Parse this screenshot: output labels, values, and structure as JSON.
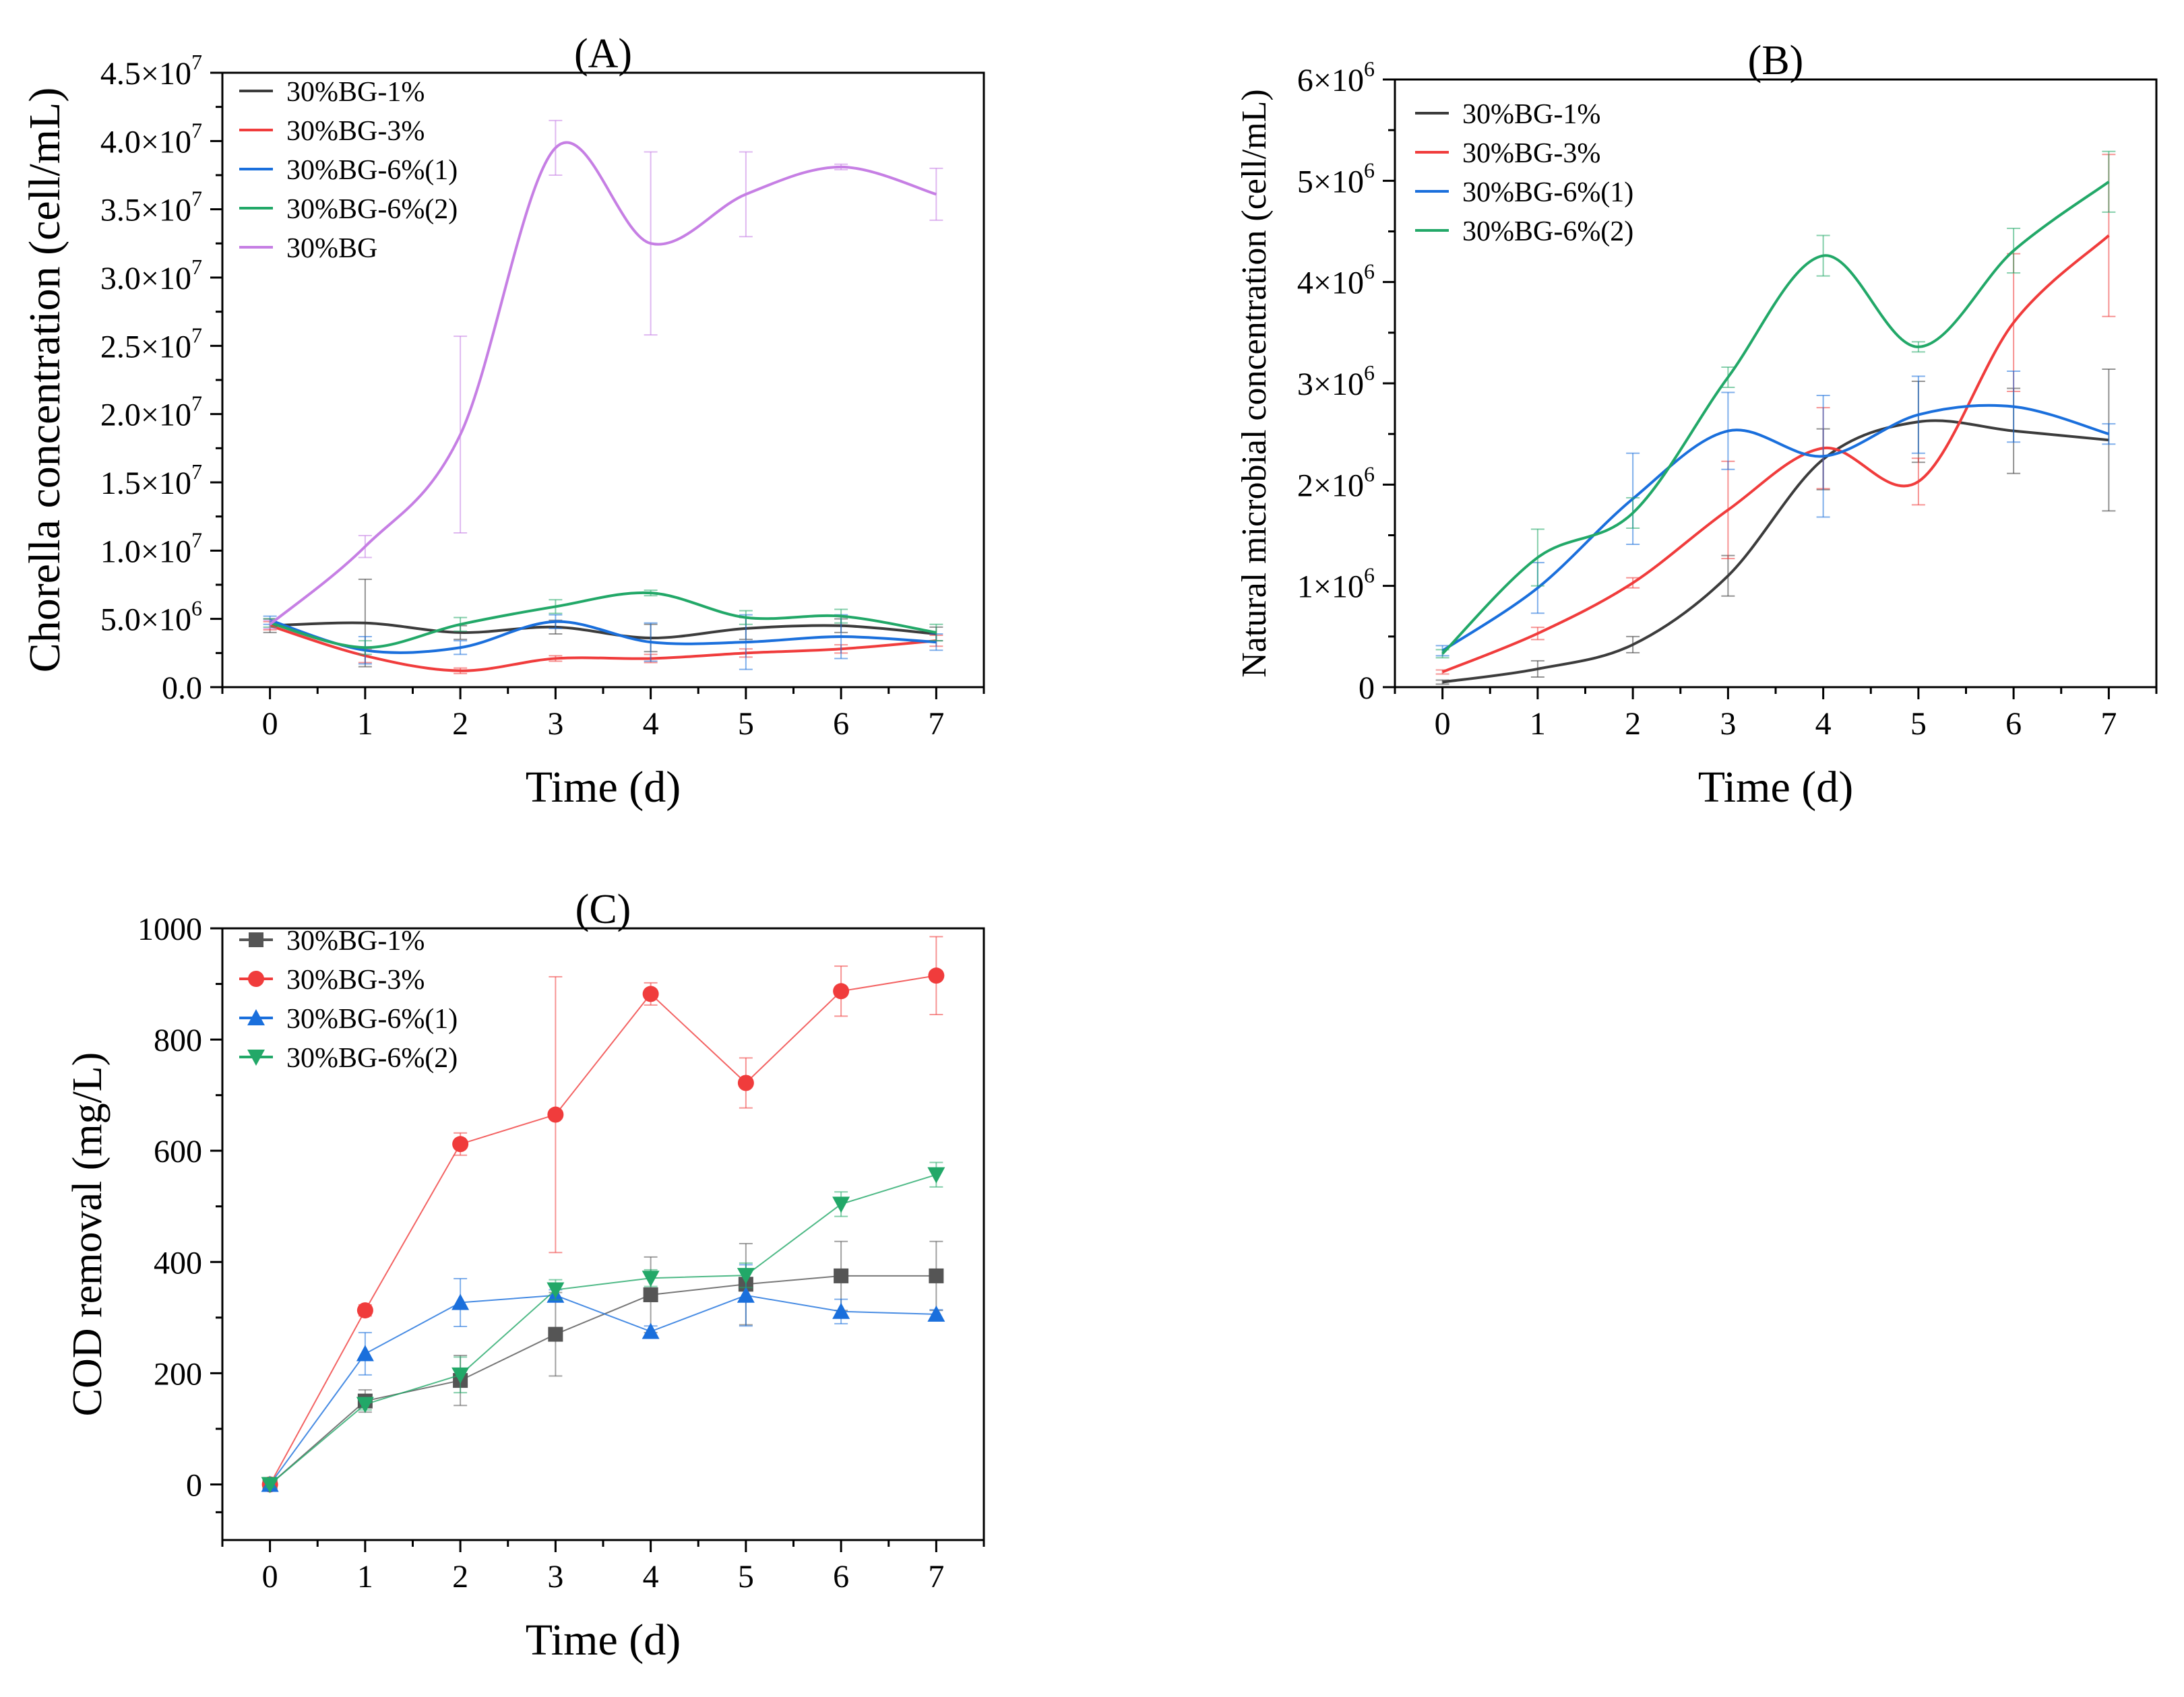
{
  "chart_data": [
    {
      "panel": "A",
      "type": "line",
      "title": "(A)",
      "xlabel": "Time (d)",
      "ylabel": "Chorella concentration (cell/mL)",
      "x": [
        0,
        1,
        2,
        3,
        4,
        5,
        6,
        7
      ],
      "xlim": [
        -0.5,
        7.5
      ],
      "ylim": [
        0,
        45000000
      ],
      "yticks": [
        0,
        5000000,
        10000000,
        15000000,
        20000000,
        25000000,
        30000000,
        35000000,
        40000000,
        45000000
      ],
      "ytick_labels": [
        {
          "base": "0.0",
          "exp": ""
        },
        {
          "base": "5.0×10",
          "exp": "6"
        },
        {
          "base": "1.0×10",
          "exp": "7"
        },
        {
          "base": "1.5×10",
          "exp": "7"
        },
        {
          "base": "2.0×10",
          "exp": "7"
        },
        {
          "base": "2.5×10",
          "exp": "7"
        },
        {
          "base": "3.0×10",
          "exp": "7"
        },
        {
          "base": "3.5×10",
          "exp": "7"
        },
        {
          "base": "4.0×10",
          "exp": "7"
        },
        {
          "base": "4.5×10",
          "exp": "7"
        }
      ],
      "xtick_labels": [
        "0",
        "1",
        "2",
        "3",
        "4",
        "5",
        "6",
        "7"
      ],
      "legend_position": "top-left",
      "smooth": true,
      "series": [
        {
          "name": "30%BG-1%",
          "color": "#3c3c3c",
          "values": [
            4500000,
            4700000,
            4000000,
            4400000,
            3600000,
            4300000,
            4500000,
            3900000
          ],
          "errors": [
            500000,
            3200000,
            500000,
            500000,
            1000000,
            800000,
            500000,
            500000
          ]
        },
        {
          "name": "30%BG-3%",
          "color": "#f03c3c",
          "values": [
            4500000,
            2300000,
            1200000,
            2100000,
            2100000,
            2500000,
            2800000,
            3400000
          ],
          "errors": [
            300000,
            500000,
            200000,
            200000,
            300000,
            300000,
            300000,
            400000
          ]
        },
        {
          "name": "30%BG-6%(1)",
          "color": "#1a6fdc",
          "values": [
            4900000,
            2700000,
            2900000,
            4800000,
            3300000,
            3300000,
            3700000,
            3300000
          ],
          "errors": [
            300000,
            1000000,
            500000,
            500000,
            1400000,
            2000000,
            1600000,
            600000
          ]
        },
        {
          "name": "30%BG-6%(2)",
          "color": "#22a868",
          "values": [
            4700000,
            2900000,
            4600000,
            5900000,
            6900000,
            5100000,
            5200000,
            4000000
          ],
          "errors": [
            300000,
            500000,
            500000,
            500000,
            200000,
            500000,
            500000,
            600000
          ]
        },
        {
          "name": "30%BG",
          "color": "#c67fe4",
          "values": [
            4600000,
            10300000,
            18500000,
            39500000,
            32500000,
            36100000,
            38100000,
            36100000
          ],
          "errors": [
            300000,
            800000,
            7200000,
            2000000,
            6700000,
            3100000,
            200000,
            1900000
          ]
        }
      ]
    },
    {
      "panel": "B",
      "type": "line",
      "title": "(B)",
      "xlabel": "Time (d)",
      "ylabel": "Natural microbial concentration (cell/mL)",
      "x": [
        0,
        1,
        2,
        3,
        4,
        5,
        6,
        7
      ],
      "xlim": [
        -0.5,
        7.5
      ],
      "ylim": [
        0,
        6000000
      ],
      "yticks": [
        0,
        1000000,
        2000000,
        3000000,
        4000000,
        5000000,
        6000000
      ],
      "ytick_labels": [
        {
          "base": "0",
          "exp": ""
        },
        {
          "base": "1×10",
          "exp": "6"
        },
        {
          "base": "2×10",
          "exp": "6"
        },
        {
          "base": "3×10",
          "exp": "6"
        },
        {
          "base": "4×10",
          "exp": "6"
        },
        {
          "base": "5×10",
          "exp": "6"
        },
        {
          "base": "6×10",
          "exp": "6"
        }
      ],
      "xtick_labels": [
        "0",
        "1",
        "2",
        "3",
        "4",
        "5",
        "6",
        "7"
      ],
      "legend_position": "top-left",
      "smooth": true,
      "series": [
        {
          "name": "30%BG-1%",
          "color": "#3c3c3c",
          "values": [
            50000,
            180000,
            420000,
            1100000,
            2250000,
            2620000,
            2530000,
            2440000
          ],
          "errors": [
            20000,
            80000,
            80000,
            200000,
            300000,
            400000,
            420000,
            700000
          ]
        },
        {
          "name": "30%BG-3%",
          "color": "#f03c3c",
          "values": [
            150000,
            530000,
            1030000,
            1750000,
            2360000,
            2030000,
            3600000,
            4460000
          ],
          "errors": [
            20000,
            60000,
            50000,
            480000,
            400000,
            230000,
            680000,
            800000
          ]
        },
        {
          "name": "30%BG-6%(1)",
          "color": "#1a6fdc",
          "values": [
            360000,
            980000,
            1860000,
            2530000,
            2280000,
            2690000,
            2770000,
            2500000
          ],
          "errors": [
            50000,
            250000,
            450000,
            380000,
            600000,
            380000,
            350000,
            100000
          ]
        },
        {
          "name": "30%BG-6%(2)",
          "color": "#22a868",
          "values": [
            330000,
            1280000,
            1720000,
            3060000,
            4260000,
            3360000,
            4310000,
            4990000
          ],
          "errors": [
            40000,
            280000,
            150000,
            100000,
            200000,
            50000,
            220000,
            300000
          ]
        }
      ]
    },
    {
      "panel": "C",
      "type": "line",
      "title": "(C)",
      "xlabel": "Time (d)",
      "ylabel": "COD removal (mg/L)",
      "x": [
        0,
        1,
        2,
        3,
        4,
        5,
        6,
        7
      ],
      "xlim": [
        -0.5,
        7.5
      ],
      "ylim": [
        -100,
        1000
      ],
      "yticks": [
        0,
        200,
        400,
        600,
        800,
        1000
      ],
      "ytick_labels": [
        {
          "base": "0",
          "exp": ""
        },
        {
          "base": "200",
          "exp": ""
        },
        {
          "base": "400",
          "exp": ""
        },
        {
          "base": "600",
          "exp": ""
        },
        {
          "base": "800",
          "exp": ""
        },
        {
          "base": "1000",
          "exp": ""
        }
      ],
      "xtick_labels": [
        "0",
        "1",
        "2",
        "3",
        "4",
        "5",
        "6",
        "7"
      ],
      "legend_position": "top-left",
      "smooth": false,
      "series": [
        {
          "name": "30%BG-1%",
          "color": "#555555",
          "marker": "square",
          "values": [
            0,
            150,
            187,
            270,
            341,
            360,
            375,
            375
          ],
          "errors": [
            5,
            20,
            45,
            75,
            68,
            73,
            62,
            62
          ]
        },
        {
          "name": "30%BG-3%",
          "color": "#f03c3c",
          "marker": "circle",
          "values": [
            0,
            313,
            612,
            665,
            882,
            722,
            887,
            915
          ],
          "errors": [
            5,
            10,
            20,
            248,
            20,
            45,
            45,
            70
          ]
        },
        {
          "name": "30%BG-6%(1)",
          "color": "#1a6fdc",
          "marker": "triangle-up",
          "values": [
            0,
            235,
            327,
            340,
            275,
            340,
            311,
            306
          ],
          "errors": [
            5,
            38,
            43,
            10,
            10,
            55,
            22,
            8
          ]
        },
        {
          "name": "30%BG-6%(2)",
          "color": "#22a868",
          "marker": "triangle-down",
          "values": [
            0,
            144,
            197,
            350,
            371,
            376,
            504,
            557
          ],
          "errors": [
            5,
            10,
            32,
            18,
            15,
            22,
            22,
            22
          ]
        }
      ]
    }
  ]
}
